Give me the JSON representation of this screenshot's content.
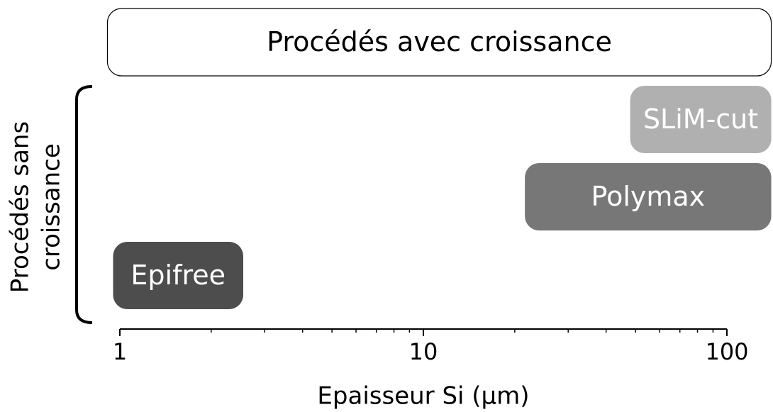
{
  "chart_data": {
    "type": "range",
    "xlabel": "Epaisseur Si (µm)",
    "ylabel": [
      "Procédés sans",
      "croissance"
    ],
    "xscale": "log",
    "xlim": [
      1,
      100
    ],
    "xticks": [
      1,
      10,
      100
    ],
    "xminorticks": [
      2,
      3,
      4,
      5,
      6,
      7,
      8,
      9,
      20,
      30,
      40,
      50,
      60,
      70,
      80,
      90
    ],
    "series": [
      {
        "name": "Procédés avec croissance",
        "start": 0.91,
        "end": 140,
        "color": "#ffffff",
        "text_color": "#000000"
      },
      {
        "name": "SLiM-cut",
        "start": 48,
        "end": 140,
        "color": "#b0b0b0",
        "text_color": "#ffffff"
      },
      {
        "name": "Polymax",
        "start": 21.6,
        "end": 140,
        "color": "#777777",
        "text_color": "#ffffff"
      },
      {
        "name": "Epifree",
        "start": 0.95,
        "end": 2.55,
        "color": "#4d4d4d",
        "text_color": "#ffffff"
      }
    ]
  }
}
